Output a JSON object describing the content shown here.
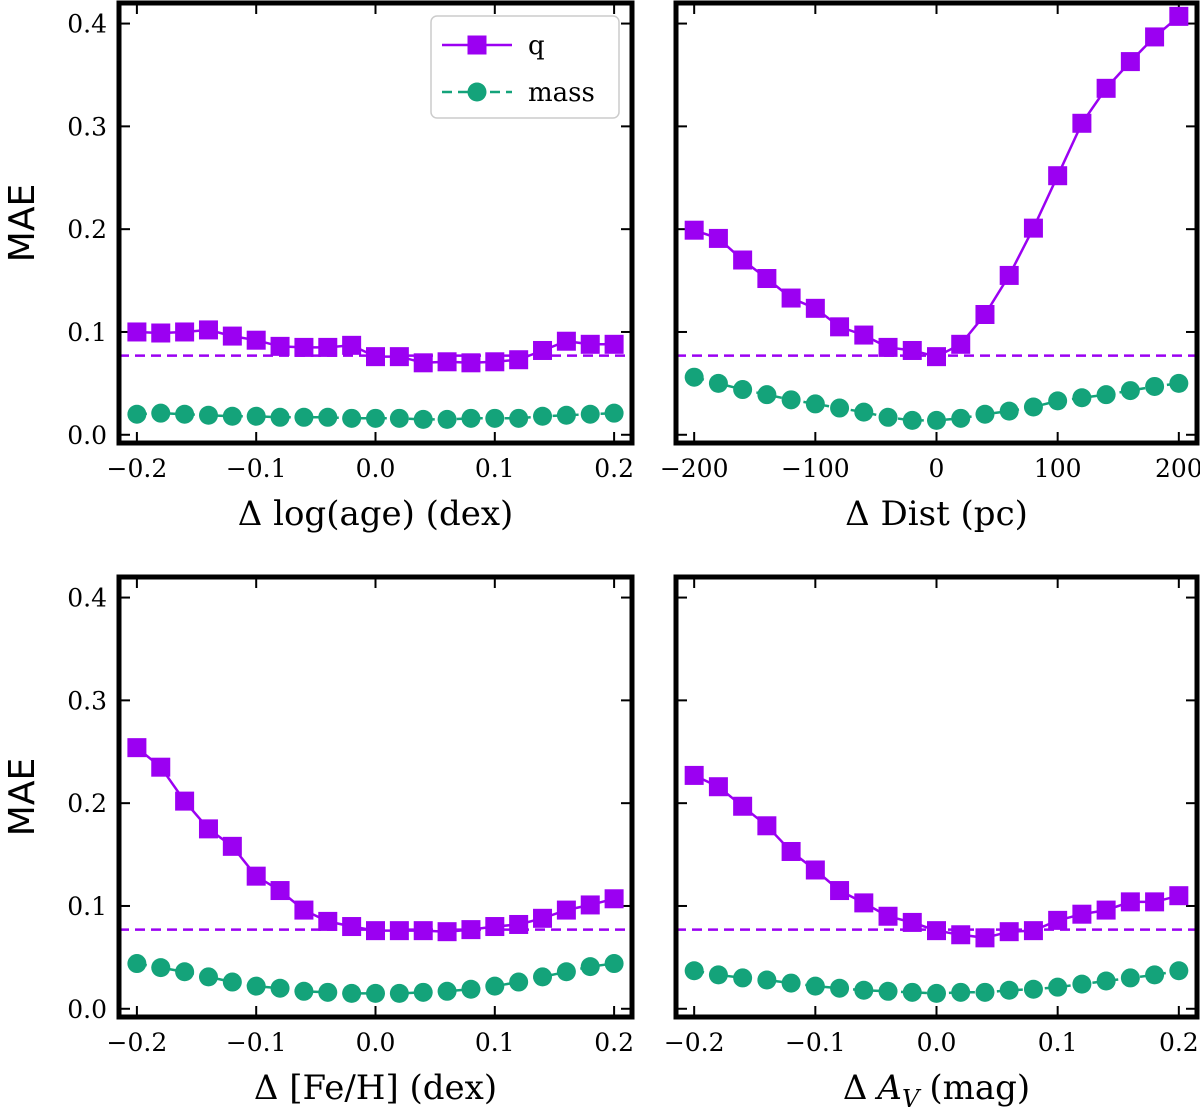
{
  "colors": {
    "q": "#9b00f2",
    "mass": "#14a37a",
    "frame": "#000000"
  },
  "legend": {
    "location": "upper-right of first panel",
    "entries": [
      {
        "series": "q",
        "label": "q",
        "marker": "square",
        "line": "solid"
      },
      {
        "series": "mass",
        "label": "mass",
        "marker": "circle",
        "line": "dashed"
      }
    ]
  },
  "chart_data": [
    {
      "type": "line",
      "xlabel": "Δ log(age) (dex)",
      "ylabel": "MAE",
      "xlim": [
        -0.215,
        0.215
      ],
      "ylim": [
        -0.008,
        0.42
      ],
      "xticks": [
        -0.2,
        -0.1,
        0.0,
        0.1,
        0.2
      ],
      "xtick_labels": [
        "−0.2",
        "−0.1",
        "0.0",
        "0.1",
        "0.2"
      ],
      "yticks": [
        0.0,
        0.1,
        0.2,
        0.3,
        0.4
      ],
      "ytick_labels": [
        "0.0",
        "0.1",
        "0.2",
        "0.3",
        "0.4"
      ],
      "show_yticklabels": true,
      "reference_line": {
        "value": 0.077,
        "style": "dashed",
        "color_series": "q"
      },
      "x": [
        -0.2,
        -0.18,
        -0.16,
        -0.14,
        -0.12,
        -0.1,
        -0.08,
        -0.06,
        -0.04,
        -0.02,
        0.0,
        0.02,
        0.04,
        0.06,
        0.08,
        0.1,
        0.12,
        0.14,
        0.16,
        0.18,
        0.2
      ],
      "series": [
        {
          "name": "q",
          "values": [
            0.1,
            0.099,
            0.1,
            0.102,
            0.096,
            0.092,
            0.086,
            0.085,
            0.085,
            0.087,
            0.076,
            0.076,
            0.07,
            0.071,
            0.07,
            0.071,
            0.073,
            0.082,
            0.091,
            0.088,
            0.088
          ]
        },
        {
          "name": "mass",
          "values": [
            0.02,
            0.021,
            0.02,
            0.019,
            0.018,
            0.018,
            0.017,
            0.017,
            0.017,
            0.016,
            0.016,
            0.016,
            0.015,
            0.015,
            0.016,
            0.016,
            0.016,
            0.018,
            0.019,
            0.02,
            0.021
          ]
        }
      ]
    },
    {
      "type": "line",
      "xlabel": "Δ Dist (pc)",
      "ylabel": "",
      "xlim": [
        -215,
        215
      ],
      "ylim": [
        -0.008,
        0.42
      ],
      "xticks": [
        -200,
        -100,
        0,
        100,
        200
      ],
      "xtick_labels": [
        "−200",
        "−100",
        "0",
        "100",
        "200"
      ],
      "yticks": [
        0.0,
        0.1,
        0.2,
        0.3,
        0.4
      ],
      "ytick_labels": [
        "",
        "",
        "",
        "",
        ""
      ],
      "show_yticklabels": false,
      "reference_line": {
        "value": 0.077,
        "style": "dashed",
        "color_series": "q"
      },
      "x": [
        -200,
        -180,
        -160,
        -140,
        -120,
        -100,
        -80,
        -60,
        -40,
        -20,
        0,
        20,
        40,
        60,
        80,
        100,
        120,
        140,
        160,
        180,
        200
      ],
      "series": [
        {
          "name": "q",
          "values": [
            0.199,
            0.191,
            0.17,
            0.152,
            0.133,
            0.123,
            0.105,
            0.097,
            0.085,
            0.082,
            0.076,
            0.088,
            0.117,
            0.155,
            0.201,
            0.252,
            0.303,
            0.337,
            0.363,
            0.387,
            0.407
          ]
        },
        {
          "name": "mass",
          "values": [
            0.056,
            0.05,
            0.044,
            0.039,
            0.034,
            0.03,
            0.026,
            0.022,
            0.017,
            0.014,
            0.014,
            0.016,
            0.02,
            0.023,
            0.027,
            0.033,
            0.036,
            0.039,
            0.043,
            0.047,
            0.05
          ]
        }
      ]
    },
    {
      "type": "line",
      "xlabel": "Δ [Fe/H] (dex)",
      "ylabel": "MAE",
      "xlim": [
        -0.215,
        0.215
      ],
      "ylim": [
        -0.008,
        0.42
      ],
      "xticks": [
        -0.2,
        -0.1,
        0.0,
        0.1,
        0.2
      ],
      "xtick_labels": [
        "−0.2",
        "−0.1",
        "0.0",
        "0.1",
        "0.2"
      ],
      "yticks": [
        0.0,
        0.1,
        0.2,
        0.3,
        0.4
      ],
      "ytick_labels": [
        "0.0",
        "0.1",
        "0.2",
        "0.3",
        "0.4"
      ],
      "show_yticklabels": true,
      "reference_line": {
        "value": 0.077,
        "style": "dashed",
        "color_series": "q"
      },
      "x": [
        -0.2,
        -0.18,
        -0.16,
        -0.14,
        -0.12,
        -0.1,
        -0.08,
        -0.06,
        -0.04,
        -0.02,
        0.0,
        0.02,
        0.04,
        0.06,
        0.08,
        0.1,
        0.12,
        0.14,
        0.16,
        0.18,
        0.2
      ],
      "series": [
        {
          "name": "q",
          "values": [
            0.254,
            0.235,
            0.202,
            0.175,
            0.158,
            0.129,
            0.115,
            0.096,
            0.085,
            0.08,
            0.076,
            0.076,
            0.076,
            0.075,
            0.077,
            0.08,
            0.082,
            0.088,
            0.096,
            0.101,
            0.107
          ]
        },
        {
          "name": "mass",
          "values": [
            0.044,
            0.04,
            0.036,
            0.031,
            0.026,
            0.022,
            0.02,
            0.017,
            0.016,
            0.015,
            0.015,
            0.015,
            0.016,
            0.017,
            0.019,
            0.022,
            0.026,
            0.031,
            0.036,
            0.041,
            0.044
          ]
        }
      ]
    },
    {
      "type": "line",
      "xlabel_prefix": "Δ",
      "xlabel_var": "A",
      "xlabel_sub": "V",
      "xlabel_suffix": "(mag)",
      "ylabel": "",
      "xlim": [
        -0.215,
        0.215
      ],
      "ylim": [
        -0.008,
        0.42
      ],
      "xticks": [
        -0.2,
        -0.1,
        0.0,
        0.1,
        0.2
      ],
      "xtick_labels": [
        "−0.2",
        "−0.1",
        "0.0",
        "0.1",
        "0.2"
      ],
      "yticks": [
        0.0,
        0.1,
        0.2,
        0.3,
        0.4
      ],
      "ytick_labels": [
        "",
        "",
        "",
        "",
        ""
      ],
      "show_yticklabels": false,
      "reference_line": {
        "value": 0.077,
        "style": "dashed",
        "color_series": "q"
      },
      "x": [
        -0.2,
        -0.18,
        -0.16,
        -0.14,
        -0.12,
        -0.1,
        -0.08,
        -0.06,
        -0.04,
        -0.02,
        0.0,
        0.02,
        0.04,
        0.06,
        0.08,
        0.1,
        0.12,
        0.14,
        0.16,
        0.18,
        0.2
      ],
      "series": [
        {
          "name": "q",
          "values": [
            0.227,
            0.216,
            0.197,
            0.178,
            0.153,
            0.135,
            0.115,
            0.103,
            0.09,
            0.084,
            0.076,
            0.072,
            0.069,
            0.075,
            0.076,
            0.086,
            0.092,
            0.096,
            0.104,
            0.104,
            0.11
          ]
        },
        {
          "name": "mass",
          "values": [
            0.037,
            0.033,
            0.03,
            0.028,
            0.025,
            0.022,
            0.02,
            0.018,
            0.017,
            0.016,
            0.015,
            0.016,
            0.016,
            0.018,
            0.019,
            0.021,
            0.024,
            0.027,
            0.03,
            0.033,
            0.037
          ]
        }
      ]
    }
  ]
}
